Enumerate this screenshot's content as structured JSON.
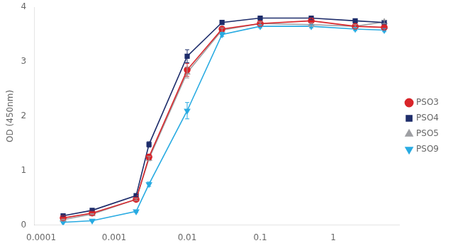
{
  "chart_data": {
    "type": "line",
    "ylabel": "OD (450nm)",
    "log": "x",
    "x": [
      0.0002,
      0.0005,
      0.002,
      0.003,
      0.01,
      0.03,
      0.1,
      0.5,
      2,
      5
    ],
    "series": [
      {
        "name": "PSO3",
        "color": "#d9252a",
        "marker": "circle",
        "values": [
          0.13,
          0.22,
          0.47,
          1.25,
          2.85,
          3.6,
          3.7,
          3.75,
          3.65,
          3.63
        ],
        "yerr": [
          0.01,
          0.01,
          0.02,
          0.05,
          0.12,
          0.04,
          0.03,
          0.03,
          0.03,
          0.03
        ]
      },
      {
        "name": "PSO4",
        "color": "#1e2d6b",
        "marker": "square",
        "values": [
          0.17,
          0.27,
          0.54,
          1.48,
          3.1,
          3.72,
          3.8,
          3.8,
          3.75,
          3.72
        ],
        "yerr": [
          0.01,
          0.01,
          0.02,
          0.05,
          0.12,
          0.04,
          0.03,
          0.03,
          0.03,
          0.03
        ]
      },
      {
        "name": "PSO5",
        "color": "#9e9fa3",
        "marker": "triangle-up",
        "values": [
          0.1,
          0.2,
          0.47,
          1.22,
          2.8,
          3.58,
          3.7,
          3.68,
          3.65,
          3.73
        ],
        "yerr": [
          0.01,
          0.01,
          0.02,
          0.04,
          0.1,
          0.04,
          0.03,
          0.03,
          0.03,
          0.03
        ]
      },
      {
        "name": "PSO9",
        "color": "#29abe2",
        "marker": "triangle-down",
        "values": [
          0.05,
          0.08,
          0.25,
          0.75,
          2.1,
          3.5,
          3.65,
          3.65,
          3.6,
          3.58
        ],
        "yerr": [
          0.01,
          0.01,
          0.02,
          0.04,
          0.15,
          0.04,
          0.03,
          0.03,
          0.03,
          0.03
        ]
      }
    ],
    "xlim": [
      8e-05,
      8
    ],
    "xticks": [
      0.0001,
      0.001,
      0.01,
      0.1,
      1
    ],
    "ylim": [
      0,
      4
    ],
    "yticks": [
      0,
      1,
      2,
      3,
      4
    ],
    "grid": false,
    "legend": "right"
  }
}
